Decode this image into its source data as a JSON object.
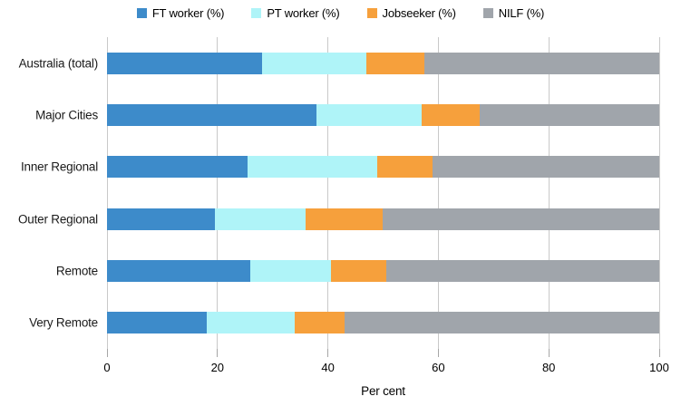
{
  "chart_data": {
    "type": "bar",
    "orientation": "horizontal-stacked",
    "categories": [
      "Australia (total)",
      "Major Cities",
      "Inner Regional",
      "Outer Regional",
      "Remote",
      "Very Remote"
    ],
    "series": [
      {
        "name": "FT worker (%)",
        "color": "#3d8bca",
        "values": [
          28,
          38,
          25.5,
          19.5,
          26,
          18
        ]
      },
      {
        "name": "PT worker (%)",
        "color": "#aff4f8",
        "values": [
          19,
          19,
          23.5,
          16.5,
          14.5,
          16
        ]
      },
      {
        "name": "Jobseeker (%)",
        "color": "#f6a03c",
        "values": [
          10.5,
          10.5,
          10,
          14,
          10,
          9
        ]
      },
      {
        "name": "NILF (%)",
        "color": "#a0a5ab",
        "values": [
          42.5,
          32.5,
          41,
          50,
          49.5,
          57
        ]
      }
    ],
    "x_ticks": [
      0,
      20,
      40,
      60,
      80,
      100
    ],
    "x_tick_labels": [
      "0",
      "20",
      "40",
      "60",
      "80",
      "100"
    ],
    "xlim": [
      0,
      100
    ],
    "xlabel": "Per cent",
    "grid": "vertical",
    "legend_position": "top-center",
    "gridline_color": "#c9c9c9",
    "tick_color": "#a6a6a6"
  }
}
